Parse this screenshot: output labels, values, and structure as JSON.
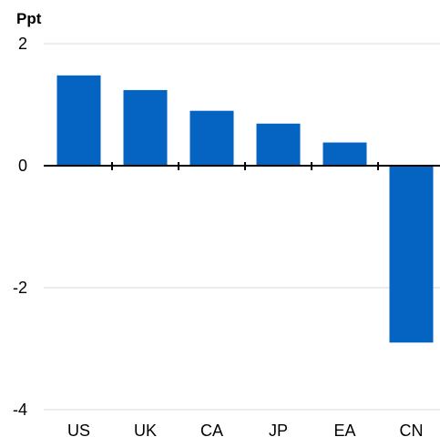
{
  "chart_data": {
    "type": "bar",
    "unit_label": "Ppt",
    "categories": [
      "US",
      "UK",
      "CA",
      "JP",
      "EA",
      "CN"
    ],
    "values": [
      1.48,
      1.24,
      0.9,
      0.69,
      0.38,
      -2.9
    ],
    "ylim": [
      -4,
      2
    ],
    "yticks": [
      2,
      0,
      -2,
      -4
    ],
    "ytick_labels": [
      "2",
      "0",
      "-2",
      "-4"
    ],
    "grid": true,
    "legend": "none",
    "colors": {
      "bar": "#0563c1",
      "grid": "#d9d9d9",
      "axis": "#000000"
    }
  }
}
